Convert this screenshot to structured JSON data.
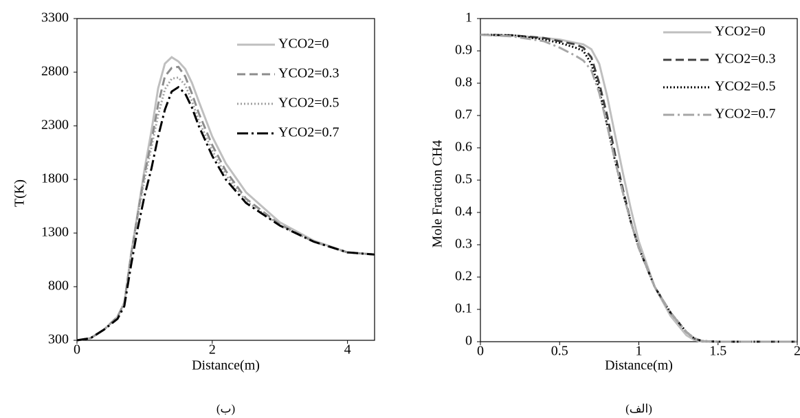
{
  "chart_data": [
    {
      "type": "line",
      "x_label": "Distance(m)",
      "y_label": "T(K)",
      "caption": "(ب)",
      "xlim": [
        0,
        4.4
      ],
      "xticks": [
        0,
        2,
        4
      ],
      "ylim": [
        300,
        3300
      ],
      "yticks": [
        300,
        800,
        1300,
        1800,
        2300,
        2800,
        3300
      ],
      "x": [
        0,
        0.2,
        0.4,
        0.6,
        0.7,
        0.8,
        0.9,
        1.0,
        1.1,
        1.2,
        1.3,
        1.4,
        1.5,
        1.6,
        1.7,
        1.8,
        2.0,
        2.2,
        2.5,
        3.0,
        3.5,
        4.0,
        4.4
      ],
      "series": [
        {
          "name": "YCO2=0",
          "color": "#bfbfbf",
          "dash": "solid",
          "values": [
            300,
            320,
            400,
            520,
            650,
            1100,
            1500,
            1900,
            2250,
            2650,
            2880,
            2940,
            2900,
            2830,
            2700,
            2530,
            2200,
            1950,
            1680,
            1400,
            1230,
            1120,
            1100
          ]
        },
        {
          "name": "YCO2=0.3",
          "color": "#8c8c8c",
          "dash": "dashed",
          "values": [
            300,
            320,
            400,
            520,
            650,
            1100,
            1480,
            1850,
            2150,
            2500,
            2760,
            2840,
            2850,
            2760,
            2600,
            2420,
            2120,
            1880,
            1620,
            1380,
            1220,
            1120,
            1100
          ]
        },
        {
          "name": "YCO2=0.5",
          "color": "#a0a0a0",
          "dash": "dotted",
          "values": [
            300,
            320,
            400,
            520,
            650,
            1100,
            1470,
            1800,
            2100,
            2400,
            2640,
            2740,
            2750,
            2680,
            2530,
            2350,
            2070,
            1840,
            1600,
            1370,
            1220,
            1120,
            1100
          ]
        },
        {
          "name": "YCO2=0.7",
          "color": "#000000",
          "dash": "dashdot",
          "values": [
            300,
            320,
            400,
            500,
            620,
            1000,
            1350,
            1650,
            1900,
            2200,
            2450,
            2620,
            2660,
            2600,
            2470,
            2300,
            2020,
            1800,
            1580,
            1370,
            1220,
            1120,
            1100
          ]
        }
      ]
    },
    {
      "type": "line",
      "x_label": "Distance(m)",
      "y_label": "Mole Fraction CH4",
      "caption": "(الف)",
      "xlim": [
        0,
        2
      ],
      "xticks": [
        0,
        0.5,
        1,
        1.5,
        2
      ],
      "ylim": [
        0,
        1
      ],
      "yticks": [
        0,
        0.1,
        0.2,
        0.3,
        0.4,
        0.5,
        0.6,
        0.7,
        0.8,
        0.9,
        1
      ],
      "x": [
        0,
        0.2,
        0.4,
        0.5,
        0.6,
        0.65,
        0.7,
        0.75,
        0.8,
        0.85,
        0.9,
        0.95,
        1.0,
        1.1,
        1.2,
        1.3,
        1.35,
        1.4,
        1.5,
        2.0
      ],
      "series": [
        {
          "name": "YCO2=0",
          "color": "#bfbfbf",
          "dash": "solid",
          "values": [
            0.95,
            0.948,
            0.94,
            0.935,
            0.925,
            0.92,
            0.905,
            0.86,
            0.76,
            0.64,
            0.52,
            0.41,
            0.31,
            0.17,
            0.08,
            0.02,
            0.005,
            0,
            0,
            0
          ]
        },
        {
          "name": "YCO2=0.3",
          "color": "#404040",
          "dash": "dashed",
          "values": [
            0.95,
            0.948,
            0.94,
            0.93,
            0.92,
            0.91,
            0.88,
            0.8,
            0.7,
            0.58,
            0.47,
            0.37,
            0.29,
            0.17,
            0.09,
            0.03,
            0.01,
            0.002,
            0,
            0
          ]
        },
        {
          "name": "YCO2=0.5",
          "color": "#000000",
          "dash": "dotted",
          "values": [
            0.95,
            0.948,
            0.935,
            0.925,
            0.91,
            0.9,
            0.86,
            0.78,
            0.67,
            0.56,
            0.46,
            0.37,
            0.29,
            0.17,
            0.09,
            0.03,
            0.01,
            0.002,
            0,
            0
          ]
        },
        {
          "name": "YCO2=0.7",
          "color": "#a6a6a6",
          "dash": "dashdot",
          "values": [
            0.95,
            0.945,
            0.93,
            0.91,
            0.885,
            0.87,
            0.84,
            0.77,
            0.67,
            0.56,
            0.46,
            0.37,
            0.29,
            0.17,
            0.09,
            0.03,
            0.01,
            0.002,
            0,
            0
          ]
        }
      ]
    }
  ]
}
